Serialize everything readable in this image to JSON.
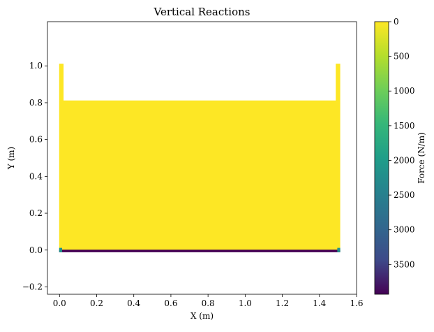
{
  "chart_data": {
    "type": "heatmap",
    "title": "Vertical Reactions",
    "xlabel": "X (m)",
    "ylabel": "Y (m)",
    "xlim": [
      -0.065,
      1.6
    ],
    "ylim": [
      -0.24,
      1.24
    ],
    "xticks": [
      {
        "value": 0.0,
        "label": "0.0"
      },
      {
        "value": 0.2,
        "label": "0.2"
      },
      {
        "value": 0.4,
        "label": "0.4"
      },
      {
        "value": 0.6,
        "label": "0.6"
      },
      {
        "value": 0.8,
        "label": "0.8"
      },
      {
        "value": 1.0,
        "label": "1.0"
      },
      {
        "value": 1.2,
        "label": "1.2"
      },
      {
        "value": 1.4,
        "label": "1.4"
      },
      {
        "value": 1.6,
        "label": "1.6"
      }
    ],
    "yticks": [
      {
        "value": -0.2,
        "label": "−0.2"
      },
      {
        "value": 0.0,
        "label": "0.0"
      },
      {
        "value": 0.2,
        "label": "0.2"
      },
      {
        "value": 0.4,
        "label": "0.4"
      },
      {
        "value": 0.6,
        "label": "0.6"
      },
      {
        "value": 0.8,
        "label": "0.8"
      },
      {
        "value": 1.0,
        "label": "1.0"
      }
    ],
    "colorbar": {
      "label": "Force (N/m)",
      "range": [
        0,
        3930
      ],
      "inverted": true,
      "colormap": "viridis",
      "ticks": [
        {
          "value": 0,
          "label": "0"
        },
        {
          "value": 500,
          "label": "500"
        },
        {
          "value": 1000,
          "label": "1000"
        },
        {
          "value": 1500,
          "label": "1500"
        },
        {
          "value": 2000,
          "label": "2000"
        },
        {
          "value": 2500,
          "label": "2500"
        },
        {
          "value": 3000,
          "label": "3000"
        },
        {
          "value": 3500,
          "label": "3500"
        }
      ]
    },
    "regions": [
      {
        "name": "structure-body",
        "force": 0,
        "color": "#fde725",
        "outline": [
          [
            0.0,
            0.0
          ],
          [
            0.0,
            1.01
          ],
          [
            0.02,
            1.01
          ],
          [
            0.02,
            0.81
          ],
          [
            1.49,
            0.81
          ],
          [
            1.49,
            1.01
          ],
          [
            1.51,
            1.01
          ],
          [
            1.51,
            0.0
          ]
        ]
      },
      {
        "name": "base-support-line",
        "force": 3930,
        "color": "#440154",
        "outline": [
          [
            0.0,
            0.0
          ],
          [
            1.51,
            0.0
          ],
          [
            1.51,
            -0.01
          ],
          [
            0.0,
            -0.01
          ]
        ]
      },
      {
        "name": "left-corner-support",
        "force": 1700,
        "color": "#21918c",
        "outline": [
          [
            0.0,
            0.01
          ],
          [
            0.012,
            0.01
          ],
          [
            0.012,
            -0.01
          ],
          [
            0.0,
            -0.01
          ]
        ]
      },
      {
        "name": "right-corner-support",
        "force": 1700,
        "color": "#21918c",
        "outline": [
          [
            1.498,
            0.01
          ],
          [
            1.51,
            0.01
          ],
          [
            1.51,
            -0.01
          ],
          [
            1.498,
            -0.01
          ]
        ]
      }
    ],
    "grid": false
  }
}
